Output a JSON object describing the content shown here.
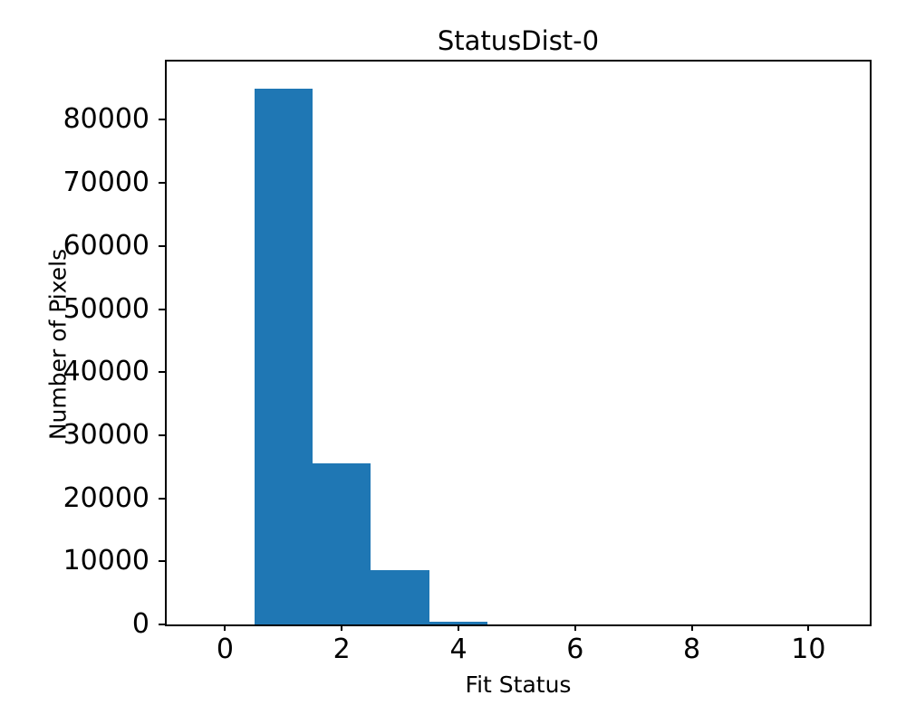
{
  "chart_data": {
    "type": "bar",
    "subtype": "histogram",
    "title": "StatusDist-0",
    "xlabel": "Fit Status",
    "ylabel": "Number of Pixels",
    "bin_centers": [
      1,
      2,
      3,
      4
    ],
    "bin_width": 1,
    "values": [
      85000,
      25500,
      8600,
      400
    ],
    "xticks": [
      0,
      2,
      4,
      6,
      8,
      10
    ],
    "yticks": [
      0,
      10000,
      20000,
      30000,
      40000,
      50000,
      60000,
      70000,
      80000
    ],
    "xlim": [
      -1.0,
      11.05
    ],
    "ylim": [
      0,
      89250
    ],
    "bar_color": "#1f77b4",
    "axis_color": "#000000",
    "background_color": "#ffffff",
    "grid": false,
    "legend": null
  }
}
